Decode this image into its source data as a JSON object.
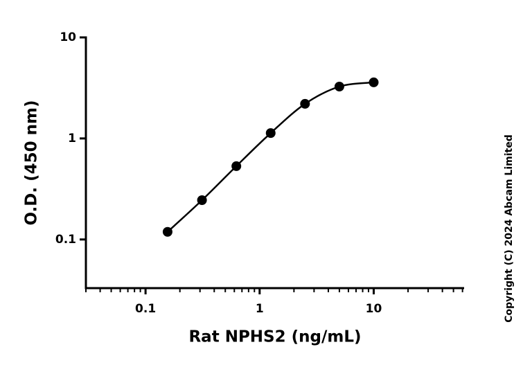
{
  "chart_data": {
    "type": "scatter",
    "x_label": "Rat NPHS2 (ng/mL)",
    "y_label": "O.D. (450 nm)",
    "copyright": "Copyright (C) 2024 Abcam Limited",
    "x": [
      0.156,
      0.3125,
      0.625,
      1.25,
      2.5,
      5,
      10
    ],
    "values": [
      0.119,
      0.245,
      0.532,
      1.13,
      2.2,
      3.26,
      3.59
    ],
    "color": "#000000",
    "fit_curve": true,
    "x_log": true,
    "y_log": true,
    "xlim": [
      0.03,
      62
    ],
    "ylim": [
      0.033,
      10
    ],
    "xticks": [
      0.1,
      1,
      10
    ],
    "yticks": [
      0.1,
      1,
      10
    ],
    "x_minor_ticks": true
  }
}
